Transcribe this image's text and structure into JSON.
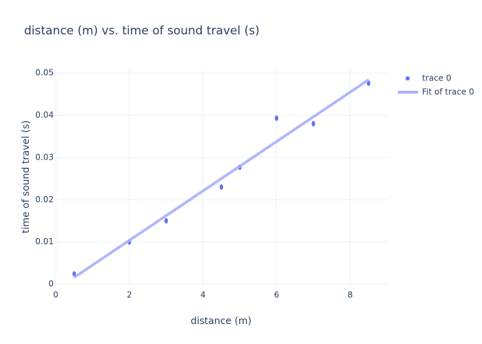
{
  "chart_data": {
    "type": "scatter",
    "title": "distance (m) vs. time of sound travel (s)",
    "x_label": "distance (m)",
    "y_label": "time of sound travel (s)",
    "series": [
      {
        "name": "trace 0",
        "mode": "markers",
        "color": "#636efa",
        "x": [
          0.5,
          2,
          3,
          4.5,
          5,
          6,
          7,
          8.5
        ],
        "values": [
          0.0024,
          0.01,
          0.015,
          0.023,
          0.0277,
          0.0393,
          0.038,
          0.0476
        ]
      },
      {
        "name": "Fit of trace 0",
        "mode": "lines",
        "color": "#a9aff7",
        "x": [
          0.5,
          8.5
        ],
        "values": [
          0.0016,
          0.0484
        ]
      }
    ],
    "xlim": [
      0,
      9
    ],
    "ylim": [
      0,
      0.051
    ],
    "xticks": [
      0,
      2,
      4,
      6,
      8
    ],
    "yticks": [
      0,
      0.01,
      0.02,
      0.03,
      0.04,
      0.05
    ],
    "grid": true
  }
}
